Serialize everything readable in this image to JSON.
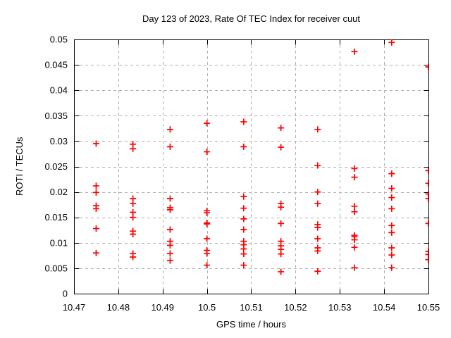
{
  "chart_data": {
    "type": "scatter",
    "title": "Day 123 of 2023, Rate Of TEC Index for receiver cuut",
    "xlabel": "GPS time / hours",
    "ylabel": "ROTI / TECUs",
    "xlim": [
      10.47,
      10.55
    ],
    "ylim": [
      0,
      0.05
    ],
    "xtick_labels": [
      "10.47",
      "10.48",
      "10.49",
      "10.5",
      "10.51",
      "10.52",
      "10.53",
      "10.54",
      "10.55"
    ],
    "ytick_labels": [
      "0",
      "0.005",
      "0.01",
      "0.015",
      "0.02",
      "0.025",
      "0.03",
      "0.035",
      "0.04",
      "0.045",
      "0.05"
    ],
    "grid": true,
    "legend": false,
    "marker": {
      "shape": "plus",
      "color": "#ff0000"
    },
    "series": [
      {
        "name": "ROTI",
        "points": [
          [
            10.475,
            0.0295
          ],
          [
            10.475,
            0.0212
          ],
          [
            10.475,
            0.0199
          ],
          [
            10.475,
            0.0173
          ],
          [
            10.475,
            0.0167
          ],
          [
            10.475,
            0.0128
          ],
          [
            10.475,
            0.008
          ],
          [
            10.4833,
            0.0294
          ],
          [
            10.4833,
            0.0285
          ],
          [
            10.4833,
            0.0187
          ],
          [
            10.4833,
            0.0177
          ],
          [
            10.4833,
            0.016
          ],
          [
            10.4833,
            0.015
          ],
          [
            10.4833,
            0.0123
          ],
          [
            10.4833,
            0.0117
          ],
          [
            10.4833,
            0.0079
          ],
          [
            10.4833,
            0.0072
          ],
          [
            10.4917,
            0.0323
          ],
          [
            10.4917,
            0.0289
          ],
          [
            10.4917,
            0.0187
          ],
          [
            10.4917,
            0.0169
          ],
          [
            10.4917,
            0.0165
          ],
          [
            10.4917,
            0.0126
          ],
          [
            10.4917,
            0.0103
          ],
          [
            10.4917,
            0.0095
          ],
          [
            10.4917,
            0.0079
          ],
          [
            10.4917,
            0.0065
          ],
          [
            10.5,
            0.0335
          ],
          [
            10.5,
            0.0279
          ],
          [
            10.5,
            0.0163
          ],
          [
            10.5,
            0.0159
          ],
          [
            10.5,
            0.0139
          ],
          [
            10.5,
            0.0137
          ],
          [
            10.5,
            0.0108
          ],
          [
            10.5,
            0.0085
          ],
          [
            10.5,
            0.0079
          ],
          [
            10.5,
            0.0056
          ],
          [
            10.5083,
            0.0338
          ],
          [
            10.5083,
            0.0289
          ],
          [
            10.5083,
            0.0191
          ],
          [
            10.5083,
            0.0168
          ],
          [
            10.5083,
            0.0147
          ],
          [
            10.5083,
            0.0126
          ],
          [
            10.5083,
            0.0103
          ],
          [
            10.5083,
            0.0096
          ],
          [
            10.5083,
            0.0088
          ],
          [
            10.5083,
            0.0078
          ],
          [
            10.5083,
            0.0056
          ],
          [
            10.5167,
            0.0326
          ],
          [
            10.5167,
            0.0288
          ],
          [
            10.5167,
            0.0177
          ],
          [
            10.5167,
            0.017
          ],
          [
            10.5167,
            0.0138
          ],
          [
            10.5167,
            0.0103
          ],
          [
            10.5167,
            0.0094
          ],
          [
            10.5167,
            0.0087
          ],
          [
            10.5167,
            0.0078
          ],
          [
            10.5167,
            0.0043
          ],
          [
            10.525,
            0.0323
          ],
          [
            10.525,
            0.0252
          ],
          [
            10.525,
            0.02
          ],
          [
            10.525,
            0.0177
          ],
          [
            10.525,
            0.0136
          ],
          [
            10.525,
            0.013
          ],
          [
            10.525,
            0.0108
          ],
          [
            10.525,
            0.009
          ],
          [
            10.525,
            0.0084
          ],
          [
            10.525,
            0.0044
          ],
          [
            10.5333,
            0.0476
          ],
          [
            10.5333,
            0.0246
          ],
          [
            10.5333,
            0.0229
          ],
          [
            10.5333,
            0.0172
          ],
          [
            10.5333,
            0.0161
          ],
          [
            10.5333,
            0.0115
          ],
          [
            10.5333,
            0.0112
          ],
          [
            10.5333,
            0.0106
          ],
          [
            10.5333,
            0.0091
          ],
          [
            10.5333,
            0.0051
          ],
          [
            10.5417,
            0.0494
          ],
          [
            10.5417,
            0.0236
          ],
          [
            10.5417,
            0.0207
          ],
          [
            10.5417,
            0.0189
          ],
          [
            10.5417,
            0.0167
          ],
          [
            10.5417,
            0.0134
          ],
          [
            10.5417,
            0.012
          ],
          [
            10.5417,
            0.009
          ],
          [
            10.5417,
            0.0076
          ],
          [
            10.5417,
            0.0051
          ],
          [
            10.55,
            0.0446
          ],
          [
            10.55,
            0.0242
          ],
          [
            10.55,
            0.0217
          ],
          [
            10.55,
            0.0196
          ],
          [
            10.55,
            0.0187
          ],
          [
            10.55,
            0.0138
          ],
          [
            10.55,
            0.0083
          ],
          [
            10.55,
            0.0077
          ],
          [
            10.55,
            0.0067
          ]
        ]
      }
    ]
  }
}
